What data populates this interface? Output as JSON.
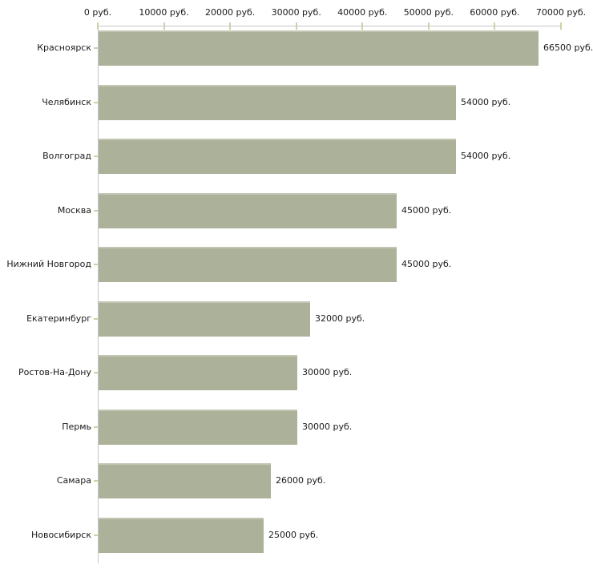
{
  "chart_data": {
    "type": "bar",
    "orientation": "horizontal",
    "title": "",
    "xlabel": "",
    "ylabel": "",
    "categories": [
      "Красноярск",
      "Челябинск",
      "Волгоград",
      "Москва",
      "Нижний Новгород",
      "Екатеринбург",
      "Ростов-На-Дону",
      "Пермь",
      "Самара",
      "Новосибирск"
    ],
    "values": [
      66500,
      54000,
      54000,
      45000,
      45000,
      32000,
      30000,
      30000,
      26000,
      25000
    ],
    "value_labels": [
      "66500 руб.",
      "54000 руб.",
      "54000 руб.",
      "45000 руб.",
      "45000 руб.",
      "32000 руб.",
      "30000 руб.",
      "30000 руб.",
      "26000 руб.",
      "25000 руб."
    ],
    "xlim": [
      0,
      70000
    ],
    "x_ticks": [
      0,
      10000,
      20000,
      30000,
      40000,
      50000,
      60000,
      70000
    ],
    "x_tick_labels": [
      "0 руб.",
      "10000 руб.",
      "20000 руб.",
      "30000 руб.",
      "40000 руб.",
      "50000 руб.",
      "60000 руб.",
      "70000 руб."
    ],
    "axis_position": "top",
    "grid": false,
    "legend": false,
    "unit": "руб.",
    "colors": {
      "bar": "#acb29a",
      "bar_highlight": "#c2c6b3",
      "axis_line": "#c6c6c6",
      "tick_mark": "#ced0a8",
      "text": "#1a1a1a",
      "background": "#ffffff"
    }
  }
}
